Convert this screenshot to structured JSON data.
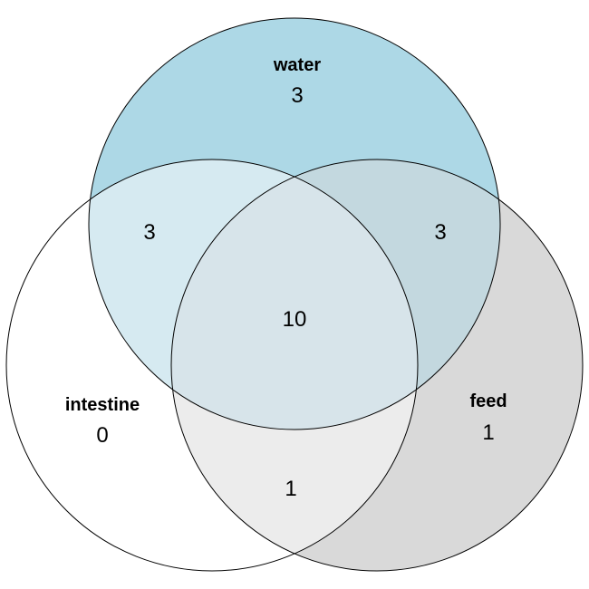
{
  "sets": {
    "water": {
      "label": "water",
      "color": "#add8e6"
    },
    "intestine": {
      "label": "intestine",
      "color": "#ffffff"
    },
    "feed": {
      "label": "feed",
      "color": "#d9d9d9"
    }
  },
  "regions": {
    "water_only": "3",
    "intestine_only": "0",
    "feed_only": "1",
    "water_intestine": "3",
    "water_feed": "3",
    "intestine_feed": "1",
    "all_three": "10"
  },
  "colors": {
    "water_fill": "#add8e6",
    "intestine_fill": "#ffffff",
    "feed_fill": "#d9d9d9",
    "water_intestine_fill": "#d6eaf1",
    "water_feed_fill": "#c3d8df",
    "intestine_feed_fill": "#ececec",
    "all_three_fill": "#d7e4ea",
    "outline": "#000000"
  }
}
